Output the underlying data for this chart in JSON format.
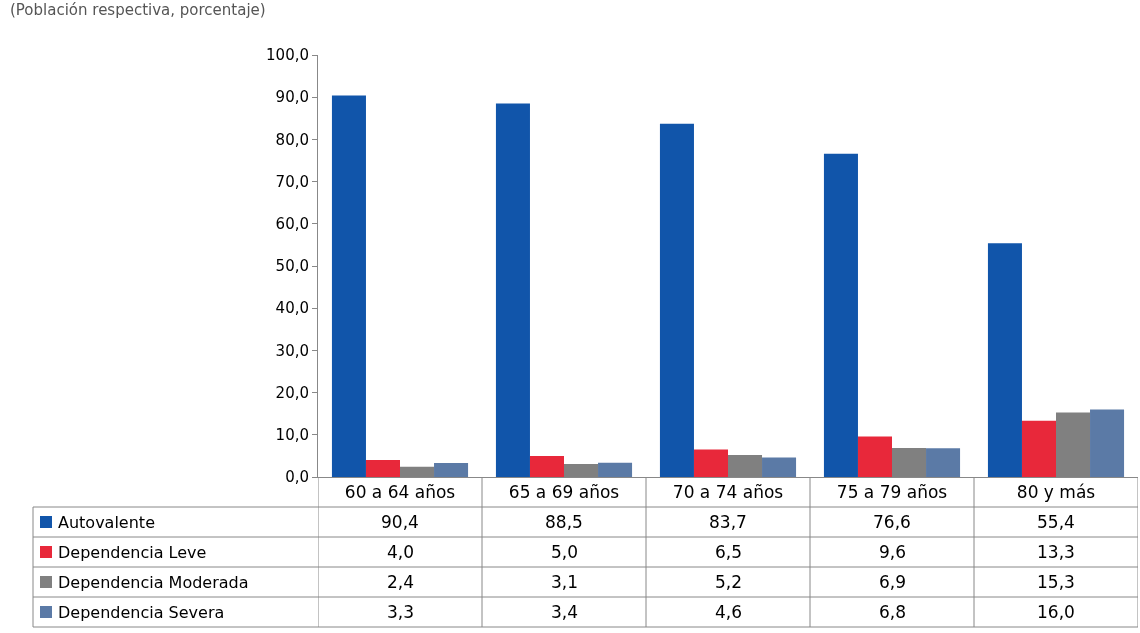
{
  "chart_data": {
    "type": "bar",
    "ylabel": "(Población respectiva, porcentaje)",
    "categories": [
      "60 a 64 años",
      "65 a 69 años",
      "70 a 74 años",
      "75 a 79 años",
      "80 y más"
    ],
    "series": [
      {
        "name": "Autovalente",
        "color": "#1155aa",
        "values": [
          90.4,
          88.5,
          83.7,
          76.6,
          55.4
        ],
        "value_labels": [
          "90,4",
          "88,5",
          "83,7",
          "76,6",
          "55,4"
        ]
      },
      {
        "name": "Dependencia Leve",
        "color": "#e8283a",
        "values": [
          4.0,
          5.0,
          6.5,
          9.6,
          13.3
        ],
        "value_labels": [
          "4,0",
          "5,0",
          "6,5",
          "9,6",
          "13,3"
        ]
      },
      {
        "name": "Dependencia Moderada",
        "color": "#808080",
        "values": [
          2.4,
          3.1,
          5.2,
          6.9,
          15.3
        ],
        "value_labels": [
          "2,4",
          "3,1",
          "5,2",
          "6,9",
          "15,3"
        ]
      },
      {
        "name": "Dependencia Severa",
        "color": "#5b7aa6",
        "values": [
          3.3,
          3.4,
          4.6,
          6.8,
          16.0
        ],
        "value_labels": [
          "3,3",
          "3,4",
          "4,6",
          "6,8",
          "16,0"
        ]
      }
    ],
    "ylim": [
      0,
      100
    ],
    "yticks": [
      {
        "value": 0,
        "label": "0,0"
      },
      {
        "value": 10,
        "label": "10,0"
      },
      {
        "value": 20,
        "label": "20,0"
      },
      {
        "value": 30,
        "label": "30,0"
      },
      {
        "value": 40,
        "label": "40,0"
      },
      {
        "value": 50,
        "label": "50,0"
      },
      {
        "value": 60,
        "label": "60,0"
      },
      {
        "value": 70,
        "label": "70,0"
      },
      {
        "value": 80,
        "label": "80,0"
      },
      {
        "value": 90,
        "label": "90,0"
      },
      {
        "value": 100,
        "label": "100,0"
      }
    ],
    "legend": "bottom left"
  }
}
